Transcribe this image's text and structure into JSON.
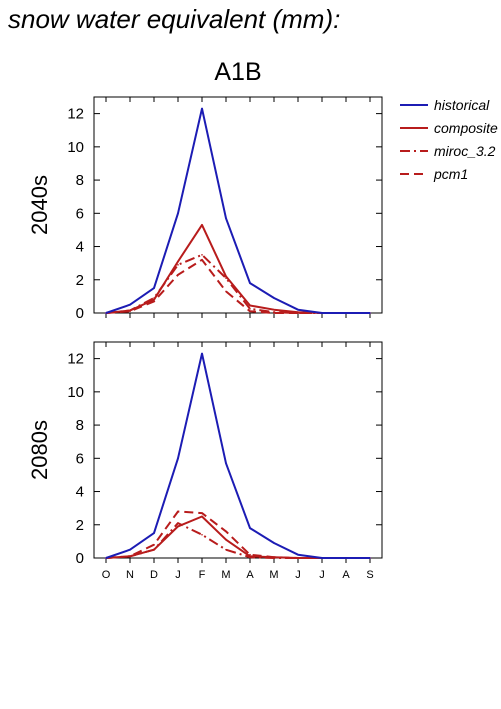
{
  "figure": {
    "title": "snow water equivalent (mm):",
    "panel_title": "A1B"
  },
  "colors": {
    "historical": "#1c1cb4",
    "projection": "#b81c1c"
  },
  "chart_data": [
    {
      "type": "line",
      "row_label": "2040s",
      "categories": [
        "O",
        "N",
        "D",
        "J",
        "F",
        "M",
        "A",
        "M",
        "J",
        "J",
        "A",
        "S"
      ],
      "ylim": [
        0,
        13
      ],
      "yticks": [
        0,
        2,
        4,
        6,
        8,
        10,
        12
      ],
      "show_xtick_labels": false,
      "grid": false,
      "legend_position": "right",
      "series": [
        {
          "name": "historical",
          "style": "solid",
          "color": "historical",
          "values": [
            0,
            0.5,
            1.5,
            6.0,
            12.3,
            5.7,
            1.8,
            0.9,
            0.2,
            0,
            0,
            0
          ]
        },
        {
          "name": "composite",
          "style": "solid",
          "color": "projection",
          "values": [
            0,
            0.15,
            0.8,
            3.1,
            5.3,
            2.2,
            0.45,
            0.2,
            0.05,
            0,
            0,
            0
          ]
        },
        {
          "name": "miroc_3.2",
          "style": "dashdot",
          "color": "projection",
          "values": [
            0,
            0.15,
            0.9,
            2.9,
            3.5,
            2.1,
            0.25,
            0.05,
            0,
            0,
            0,
            0
          ]
        },
        {
          "name": "pcm1",
          "style": "dash",
          "color": "projection",
          "values": [
            0,
            0.1,
            0.7,
            2.3,
            3.2,
            1.3,
            0.1,
            0,
            0,
            0,
            0,
            0
          ]
        }
      ]
    },
    {
      "type": "line",
      "row_label": "2080s",
      "categories": [
        "O",
        "N",
        "D",
        "J",
        "F",
        "M",
        "A",
        "M",
        "J",
        "J",
        "A",
        "S"
      ],
      "ylim": [
        0,
        13
      ],
      "yticks": [
        0,
        2,
        4,
        6,
        8,
        10,
        12
      ],
      "show_xtick_labels": true,
      "grid": false,
      "series": [
        {
          "name": "historical",
          "style": "solid",
          "color": "historical",
          "values": [
            0,
            0.5,
            1.5,
            6.0,
            12.3,
            5.7,
            1.8,
            0.9,
            0.2,
            0,
            0,
            0
          ]
        },
        {
          "name": "composite",
          "style": "solid",
          "color": "projection",
          "values": [
            0,
            0.1,
            0.5,
            1.9,
            2.5,
            1.1,
            0.1,
            0.05,
            0,
            0,
            0,
            0
          ]
        },
        {
          "name": "miroc_3.2",
          "style": "dashdot",
          "color": "projection",
          "values": [
            0,
            0.1,
            0.5,
            2.1,
            1.4,
            0.5,
            0.05,
            0,
            0,
            0,
            0,
            0
          ]
        },
        {
          "name": "pcm1",
          "style": "dash",
          "color": "projection",
          "values": [
            0,
            0.1,
            0.8,
            2.8,
            2.7,
            1.6,
            0.2,
            0.05,
            0,
            0,
            0,
            0
          ]
        }
      ]
    }
  ]
}
